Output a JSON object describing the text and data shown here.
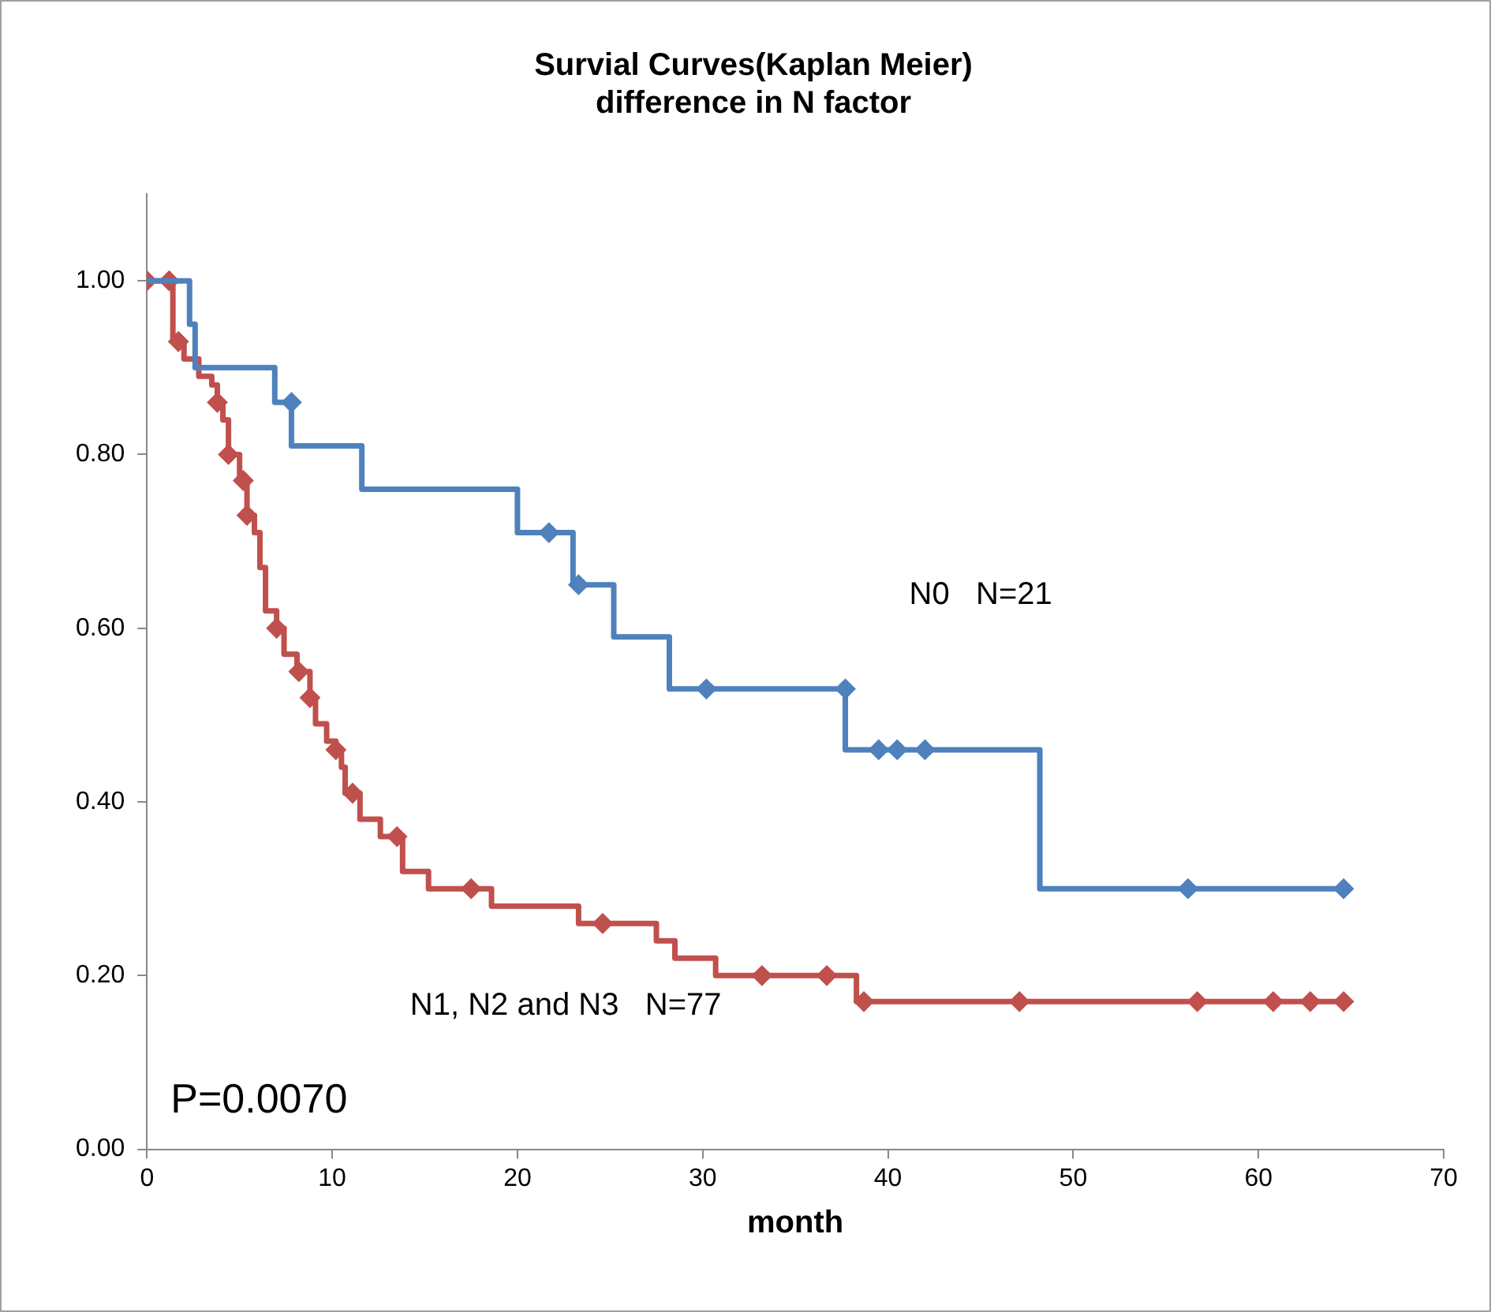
{
  "chart_data": {
    "type": "step",
    "title": "Survial Curves(Kaplan Meier)\ndifference in N factor",
    "xlabel": "month",
    "xlim": [
      0,
      70
    ],
    "xticks": [
      0,
      10,
      20,
      30,
      40,
      50,
      60,
      70
    ],
    "ylim": [
      0,
      1.1
    ],
    "yticks": [
      {
        "value": 0,
        "label": "0.00"
      },
      {
        "value": 0.2,
        "label": "0.20"
      },
      {
        "value": 0.4,
        "label": "0.40"
      },
      {
        "value": 0.6,
        "label": "0.60"
      },
      {
        "value": 0.8,
        "label": "0.80"
      },
      {
        "value": 1,
        "label": "1.00"
      }
    ],
    "grid": false,
    "legend": false,
    "line_style": "solid",
    "series": [
      {
        "color": "#4f81bd",
        "marker": "none",
        "x": [
          0,
          2.3,
          2.6,
          6.9,
          7.8,
          11.6,
          20.0,
          23.0,
          25.2,
          28.2,
          37.7,
          48.2,
          64.6
        ],
        "values": [
          1.0,
          0.95,
          0.9,
          0.86,
          0.81,
          0.76,
          0.71,
          0.65,
          0.59,
          0.53,
          0.46,
          0.3,
          0.3
        ]
      },
      {
        "type": "scatter",
        "color": "#4f81bd",
        "marker": "diamond",
        "x": [
          7.8,
          21.7,
          23.3,
          30.2,
          37.7,
          39.5,
          40.5,
          42.0,
          56.2,
          64.6
        ],
        "values": [
          0.86,
          0.71,
          0.65,
          0.53,
          0.53,
          0.46,
          0.46,
          0.46,
          0.3,
          0.3
        ]
      },
      {
        "color": "#c0504d",
        "marker": "none",
        "x": [
          0,
          1.4,
          2.0,
          2.8,
          3.5,
          3.8,
          4.1,
          4.4,
          5.0,
          5.4,
          5.8,
          6.1,
          6.4,
          7.0,
          7.4,
          8.1,
          8.8,
          9.1,
          9.7,
          10.2,
          10.5,
          10.7,
          11.5,
          12.6,
          13.8,
          15.2,
          18.6,
          23.3,
          27.5,
          28.5,
          30.7,
          38.3,
          64.6
        ],
        "values": [
          1.0,
          0.93,
          0.91,
          0.89,
          0.88,
          0.86,
          0.84,
          0.8,
          0.77,
          0.73,
          0.71,
          0.67,
          0.62,
          0.6,
          0.57,
          0.55,
          0.52,
          0.49,
          0.47,
          0.46,
          0.44,
          0.41,
          0.38,
          0.36,
          0.32,
          0.3,
          0.28,
          0.26,
          0.24,
          0.22,
          0.2,
          0.17,
          0.17
        ]
      },
      {
        "type": "scatter",
        "color": "#c0504d",
        "marker": "diamond",
        "x": [
          0,
          1.2,
          1.7,
          3.8,
          4.4,
          5.2,
          5.4,
          7.0,
          8.2,
          8.8,
          10.2,
          11.1,
          13.5,
          17.5,
          24.6,
          33.2,
          36.7,
          38.7,
          47.1,
          56.7,
          60.8,
          62.8,
          64.6
        ],
        "values": [
          1.0,
          1.0,
          0.93,
          0.86,
          0.8,
          0.77,
          0.73,
          0.6,
          0.55,
          0.52,
          0.46,
          0.41,
          0.36,
          0.3,
          0.26,
          0.2,
          0.2,
          0.17,
          0.17,
          0.17,
          0.17,
          0.17,
          0.17
        ]
      }
    ],
    "annotations": [
      "N0   N=21",
      "N1, N2 and N3   N=77",
      "P=0.0070"
    ]
  }
}
